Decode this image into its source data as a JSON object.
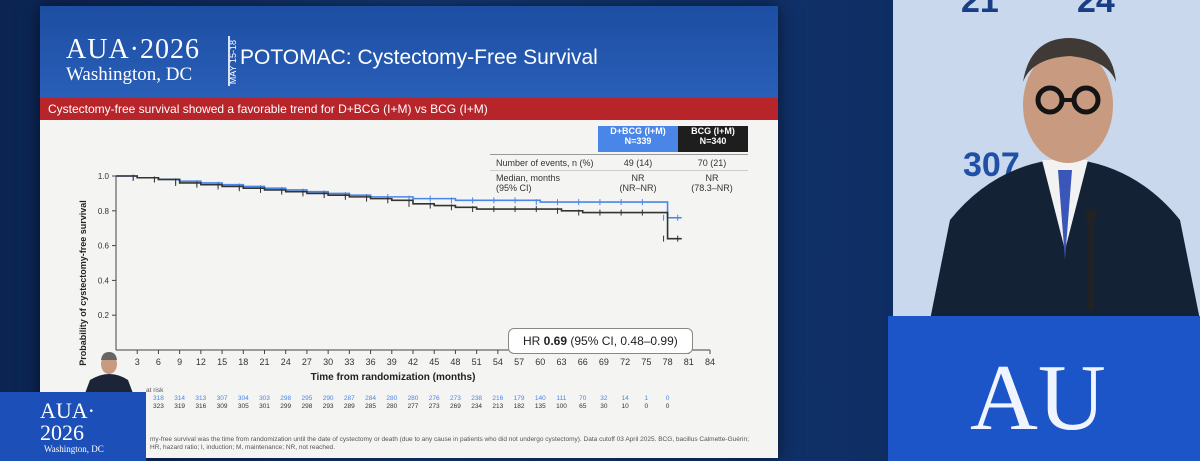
{
  "slide": {
    "logo_title": "AUA·2026",
    "logo_city": "Washington, DC",
    "logo_dates": "MAY 15-18",
    "title": "POTOMAC: Cystectomy-Free Survival",
    "subtitle": "Cystectomy-free survival showed a favorable trend for D+BCG (I+M) vs BCG (I+M)",
    "stats": {
      "col1_header": "D+BCG (I+M)",
      "col1_n": "N=339",
      "col2_header": "BCG (I+M)",
      "col2_n": "N=340",
      "row1_label": "Number of events, n (%)",
      "row1_col1": "49 (14)",
      "row1_col2": "70 (21)",
      "row2_label": "Median, months",
      "row2_label2": "(95% CI)",
      "row2_col1": "NR",
      "row2_col1b": "(NR–NR)",
      "row2_col2": "NR",
      "row2_col2b": "(78.3–NR)"
    },
    "hr_prefix": "HR ",
    "hr_value": "0.69",
    "hr_suffix": " (95% CI, 0.48–0.99)",
    "footnote_line1": "my-free survival was the time from randomization until the date of cystectomy or death (due to any cause in patients who did not undergo cystectomy). Data cutoff 03 April 2025. BCG, bacillus Calmette-Guérin;",
    "footnote_line2": "HR, hazard ratio; I, induction; M, maintenance; NR, not reached.",
    "at_risk_label": "at risk",
    "dbcg_label": "D+BCG"
  },
  "chart_data": {
    "type": "line",
    "title": "",
    "xlabel": "Time from randomization (months)",
    "ylabel": "Probability of cystectomy-free survival",
    "xlim": [
      0,
      84
    ],
    "ylim": [
      0,
      1.0
    ],
    "x_ticks": [
      3,
      6,
      9,
      12,
      15,
      18,
      21,
      24,
      27,
      30,
      33,
      36,
      39,
      42,
      45,
      48,
      51,
      54,
      57,
      60,
      63,
      66,
      69,
      72,
      75,
      78,
      81,
      84
    ],
    "y_ticks": [
      0.2,
      0.4,
      0.6,
      0.8,
      1.0
    ],
    "grid": false,
    "series": [
      {
        "name": "D+BCG (I+M)",
        "color": "#4a86e8",
        "x": [
          0,
          3,
          6,
          9,
          12,
          15,
          18,
          21,
          24,
          27,
          30,
          33,
          36,
          39,
          42,
          45,
          48,
          51,
          54,
          57,
          60,
          63,
          66,
          69,
          72,
          75,
          78,
          80
        ],
        "y": [
          1.0,
          0.99,
          0.98,
          0.97,
          0.96,
          0.95,
          0.94,
          0.93,
          0.92,
          0.91,
          0.9,
          0.89,
          0.88,
          0.88,
          0.87,
          0.87,
          0.86,
          0.86,
          0.86,
          0.86,
          0.85,
          0.85,
          0.85,
          0.85,
          0.85,
          0.85,
          0.76,
          0.76
        ]
      },
      {
        "name": "BCG (I+M)",
        "color": "#333333",
        "x": [
          0,
          3,
          6,
          9,
          12,
          15,
          18,
          21,
          24,
          27,
          30,
          33,
          36,
          39,
          42,
          45,
          48,
          51,
          54,
          57,
          60,
          63,
          66,
          69,
          72,
          75,
          78,
          80
        ],
        "y": [
          1.0,
          0.99,
          0.98,
          0.96,
          0.95,
          0.94,
          0.93,
          0.92,
          0.91,
          0.9,
          0.89,
          0.88,
          0.87,
          0.86,
          0.84,
          0.83,
          0.82,
          0.81,
          0.81,
          0.81,
          0.81,
          0.8,
          0.79,
          0.79,
          0.79,
          0.79,
          0.64,
          0.64
        ]
      }
    ],
    "at_risk": {
      "dbcg": [
        "327",
        "322",
        "318",
        "314",
        "313",
        "307",
        "304",
        "303",
        "298",
        "295",
        "290",
        "287",
        "284",
        "280",
        "280",
        "276",
        "273",
        "238",
        "216",
        "179",
        "140",
        "111",
        "70",
        "32",
        "14",
        "1",
        "0"
      ],
      "bcg": [
        "2",
        "326",
        "323",
        "319",
        "316",
        "309",
        "305",
        "301",
        "299",
        "298",
        "293",
        "289",
        "285",
        "280",
        "277",
        "273",
        "269",
        "234",
        "213",
        "182",
        "135",
        "100",
        "65",
        "30",
        "10",
        "0",
        "0"
      ]
    }
  },
  "background": {
    "right_numbers": [
      "21",
      "24",
      "307"
    ],
    "podium_right_text": "AU",
    "podium_small_line1": "AUA·",
    "podium_small_line2": "2026",
    "podium_small_line3": "Washington, DC"
  }
}
